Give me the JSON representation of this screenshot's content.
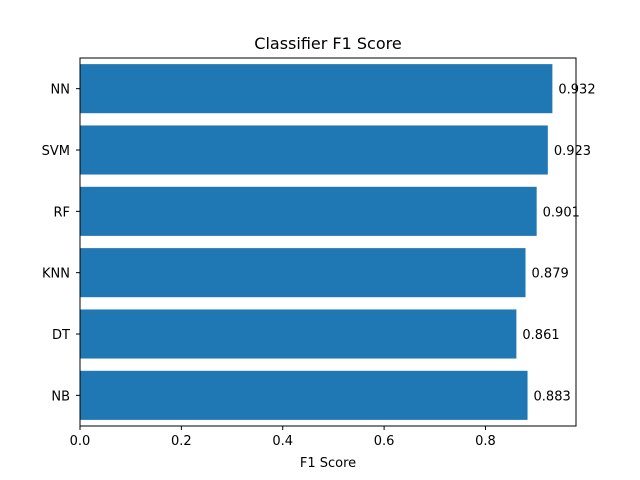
{
  "chart_data": {
    "type": "bar",
    "orientation": "horizontal",
    "title": "Classifier F1 Score",
    "xlabel": "F1 Score",
    "ylabel": "",
    "categories": [
      "NN",
      "SVM",
      "RF",
      "KNN",
      "DT",
      "NB"
    ],
    "values": [
      0.932,
      0.923,
      0.901,
      0.879,
      0.861,
      0.883
    ],
    "data_labels": [
      "0.932",
      "0.923",
      "0.901",
      "0.879",
      "0.861",
      "0.883"
    ],
    "xlim": [
      0,
      0.9786
    ],
    "xticks": [
      0.0,
      0.2,
      0.4,
      0.6,
      0.8
    ],
    "xtick_labels": [
      "0.0",
      "0.2",
      "0.4",
      "0.6",
      "0.8"
    ],
    "bar_color": "#1f77b4",
    "grid": false,
    "legend": "none"
  }
}
